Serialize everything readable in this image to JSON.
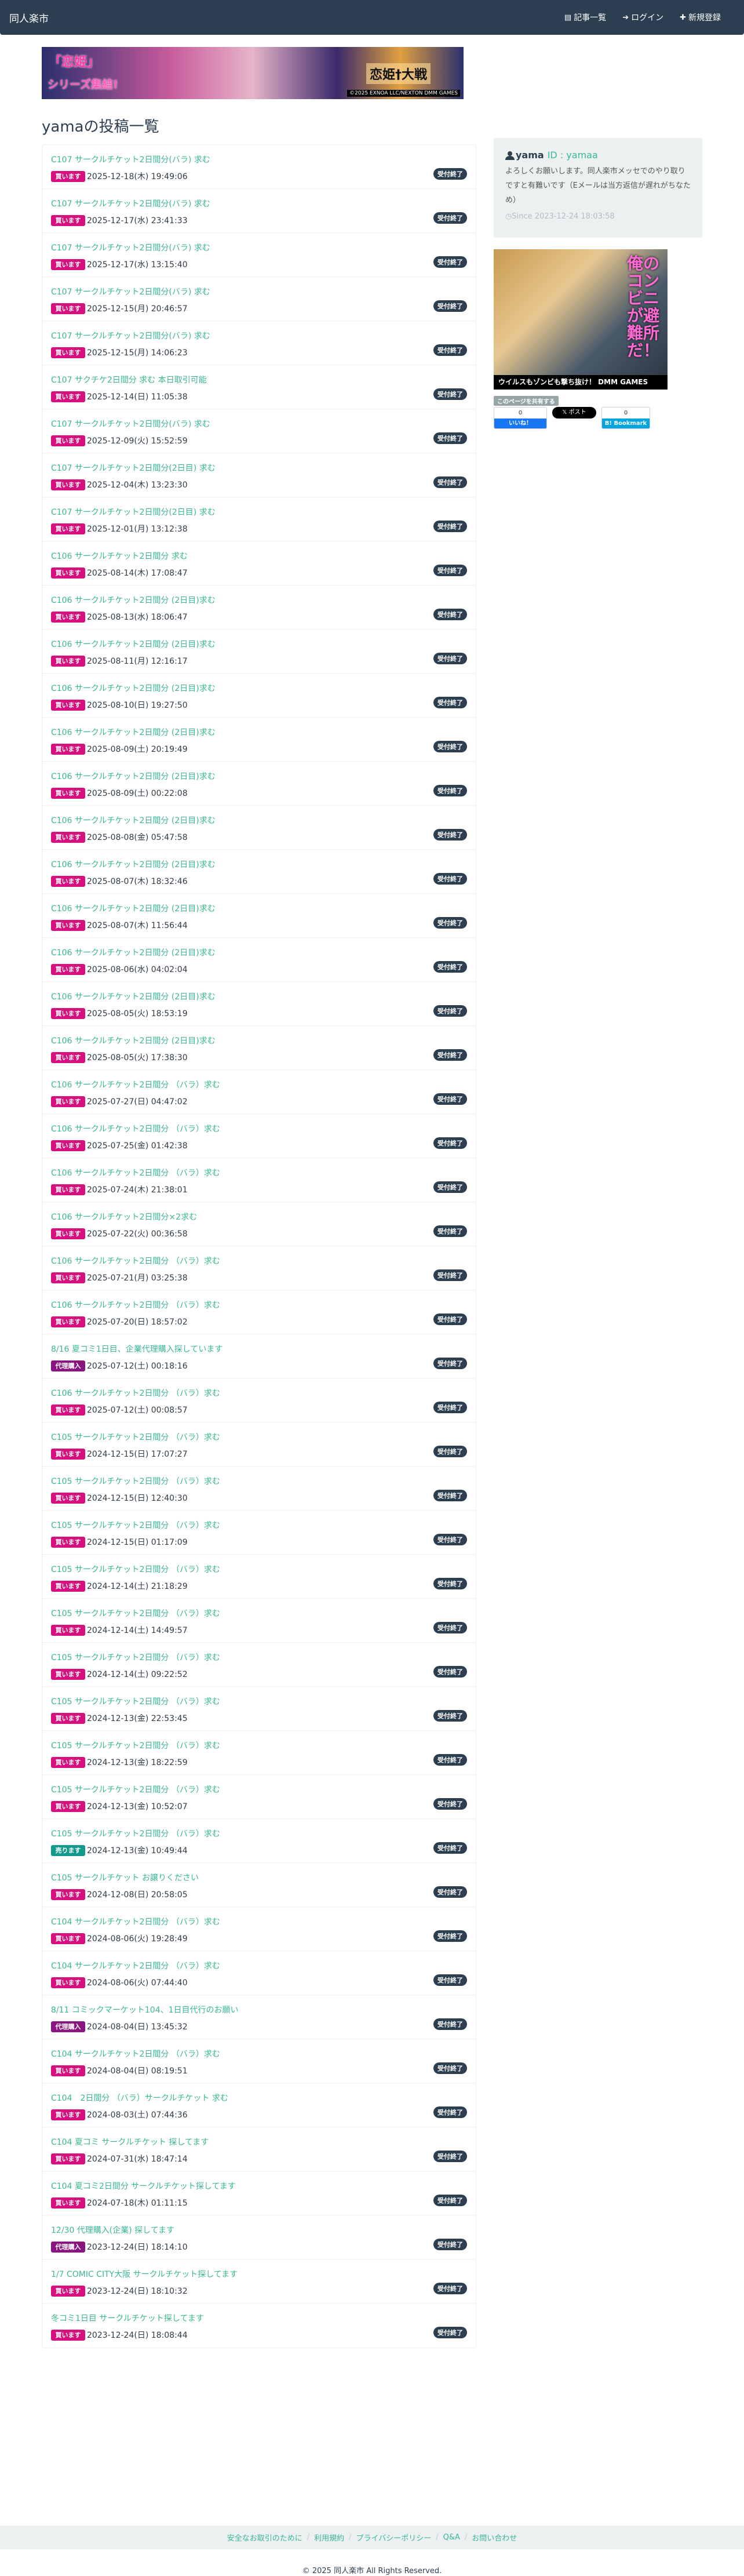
{
  "navbar": {
    "brand": "同人楽市",
    "items": [
      {
        "icon": "list-icon",
        "glyph": "▤",
        "label": "記事一覧"
      },
      {
        "icon": "login-icon",
        "glyph": "➔",
        "label": "ログイン"
      },
      {
        "icon": "plus-icon",
        "glyph": "✚",
        "label": "新規登録"
      }
    ]
  },
  "top_banner": {
    "line1": "「恋姫」",
    "line2": "シリーズ集結!",
    "line3": "恋姫†大戦",
    "credit": "©2025 EXNOA LLC/NEXTON DMM GAMES"
  },
  "page_title": "yamaの投稿一覧",
  "colors": {
    "navbar": "#2c3e50",
    "link": "#3ab795",
    "buy": "#d80f7e",
    "sell": "#139a8e",
    "proxy": "#8a157e",
    "status": "#2c3e50"
  },
  "posts": [
    {
      "title": "C107 サークルチケット2日間分(バラ) 求む",
      "type": "buy",
      "label": "買います",
      "date": "2025-12-18(木) 19:49:06",
      "status": "受付終了"
    },
    {
      "title": "C107 サークルチケット2日間分(バラ) 求む",
      "type": "buy",
      "label": "買います",
      "date": "2025-12-17(水) 23:41:33",
      "status": "受付終了"
    },
    {
      "title": "C107 サークルチケット2日間分(バラ) 求む",
      "type": "buy",
      "label": "買います",
      "date": "2025-12-17(水) 13:15:40",
      "status": "受付終了"
    },
    {
      "title": "C107 サークルチケット2日間分(バラ) 求む",
      "type": "buy",
      "label": "買います",
      "date": "2025-12-15(月) 20:46:57",
      "status": "受付終了"
    },
    {
      "title": "C107 サークルチケット2日間分(バラ) 求む",
      "type": "buy",
      "label": "買います",
      "date": "2025-12-15(月) 14:06:23",
      "status": "受付終了"
    },
    {
      "title": "C107 サクチケ2日間分 求む 本日取引可能",
      "type": "buy",
      "label": "買います",
      "date": "2025-12-14(日) 11:05:38",
      "status": "受付終了"
    },
    {
      "title": "C107 サークルチケット2日間分(バラ) 求む",
      "type": "buy",
      "label": "買います",
      "date": "2025-12-09(火) 15:52:59",
      "status": "受付終了"
    },
    {
      "title": "C107 サークルチケット2日間分(2日目) 求む",
      "type": "buy",
      "label": "買います",
      "date": "2025-12-04(木) 13:23:30",
      "status": "受付終了"
    },
    {
      "title": "C107 サークルチケット2日間分(2日目) 求む",
      "type": "buy",
      "label": "買います",
      "date": "2025-12-01(月) 13:12:38",
      "status": "受付終了"
    },
    {
      "title": "C106 サークルチケット2日間分 求む",
      "type": "buy",
      "label": "買います",
      "date": "2025-08-14(木) 17:08:47",
      "status": "受付終了"
    },
    {
      "title": "C106 サークルチケット2日間分 (2日目)求む",
      "type": "buy",
      "label": "買います",
      "date": "2025-08-13(水) 18:06:47",
      "status": "受付終了"
    },
    {
      "title": "C106 サークルチケット2日間分 (2日目)求む",
      "type": "buy",
      "label": "買います",
      "date": "2025-08-11(月) 12:16:17",
      "status": "受付終了"
    },
    {
      "title": "C106 サークルチケット2日間分 (2日目)求む",
      "type": "buy",
      "label": "買います",
      "date": "2025-08-10(日) 19:27:50",
      "status": "受付終了"
    },
    {
      "title": "C106 サークルチケット2日間分 (2日目)求む",
      "type": "buy",
      "label": "買います",
      "date": "2025-08-09(土) 20:19:49",
      "status": "受付終了"
    },
    {
      "title": "C106 サークルチケット2日間分 (2日目)求む",
      "type": "buy",
      "label": "買います",
      "date": "2025-08-09(土) 00:22:08",
      "status": "受付終了"
    },
    {
      "title": "C106 サークルチケット2日間分 (2日目)求む",
      "type": "buy",
      "label": "買います",
      "date": "2025-08-08(金) 05:47:58",
      "status": "受付終了"
    },
    {
      "title": "C106 サークルチケット2日間分 (2日目)求む",
      "type": "buy",
      "label": "買います",
      "date": "2025-08-07(木) 18:32:46",
      "status": "受付終了"
    },
    {
      "title": "C106 サークルチケット2日間分 (2日目)求む",
      "type": "buy",
      "label": "買います",
      "date": "2025-08-07(木) 11:56:44",
      "status": "受付終了"
    },
    {
      "title": "C106 サークルチケット2日間分 (2日目)求む",
      "type": "buy",
      "label": "買います",
      "date": "2025-08-06(水) 04:02:04",
      "status": "受付終了"
    },
    {
      "title": "C106 サークルチケット2日間分 (2日目)求む",
      "type": "buy",
      "label": "買います",
      "date": "2025-08-05(火) 18:53:19",
      "status": "受付終了"
    },
    {
      "title": "C106 サークルチケット2日間分 (2日目)求む",
      "type": "buy",
      "label": "買います",
      "date": "2025-08-05(火) 17:38:30",
      "status": "受付終了"
    },
    {
      "title": "C106 サークルチケット2日間分 （バラ）求む",
      "type": "buy",
      "label": "買います",
      "date": "2025-07-27(日) 04:47:02",
      "status": "受付終了"
    },
    {
      "title": "C106 サークルチケット2日間分 （バラ）求む",
      "type": "buy",
      "label": "買います",
      "date": "2025-07-25(金) 01:42:38",
      "status": "受付終了"
    },
    {
      "title": "C106 サークルチケット2日間分 （バラ）求む",
      "type": "buy",
      "label": "買います",
      "date": "2025-07-24(木) 21:38:01",
      "status": "受付終了"
    },
    {
      "title": "C106 サークルチケット2日間分×2求む",
      "type": "buy",
      "label": "買います",
      "date": "2025-07-22(火) 00:36:58",
      "status": "受付終了"
    },
    {
      "title": "C106 サークルチケット2日間分 （バラ）求む",
      "type": "buy",
      "label": "買います",
      "date": "2025-07-21(月) 03:25:38",
      "status": "受付終了"
    },
    {
      "title": "C106 サークルチケット2日間分 （バラ）求む",
      "type": "buy",
      "label": "買います",
      "date": "2025-07-20(日) 18:57:02",
      "status": "受付終了"
    },
    {
      "title": "8/16 夏コミ1日目、企業代理購入探しています",
      "type": "proxy",
      "label": "代理購入",
      "date": "2025-07-12(土) 00:18:16",
      "status": "受付終了"
    },
    {
      "title": "C106 サークルチケット2日間分 （バラ）求む",
      "type": "buy",
      "label": "買います",
      "date": "2025-07-12(土) 00:08:57",
      "status": "受付終了"
    },
    {
      "title": "C105 サークルチケット2日間分 （バラ）求む",
      "type": "buy",
      "label": "買います",
      "date": "2024-12-15(日) 17:07:27",
      "status": "受付終了"
    },
    {
      "title": "C105 サークルチケット2日間分 （バラ）求む",
      "type": "buy",
      "label": "買います",
      "date": "2024-12-15(日) 12:40:30",
      "status": "受付終了"
    },
    {
      "title": "C105 サークルチケット2日間分 （バラ）求む",
      "type": "buy",
      "label": "買います",
      "date": "2024-12-15(日) 01:17:09",
      "status": "受付終了"
    },
    {
      "title": "C105 サークルチケット2日間分 （バラ）求む",
      "type": "buy",
      "label": "買います",
      "date": "2024-12-14(土) 21:18:29",
      "status": "受付終了"
    },
    {
      "title": "C105 サークルチケット2日間分 （バラ）求む",
      "type": "buy",
      "label": "買います",
      "date": "2024-12-14(土) 14:49:57",
      "status": "受付終了"
    },
    {
      "title": "C105 サークルチケット2日間分 （バラ）求む",
      "type": "buy",
      "label": "買います",
      "date": "2024-12-14(土) 09:22:52",
      "status": "受付終了"
    },
    {
      "title": "C105 サークルチケット2日間分 （バラ）求む",
      "type": "buy",
      "label": "買います",
      "date": "2024-12-13(金) 22:53:45",
      "status": "受付終了"
    },
    {
      "title": "C105 サークルチケット2日間分 （バラ）求む",
      "type": "buy",
      "label": "買います",
      "date": "2024-12-13(金) 18:22:59",
      "status": "受付終了"
    },
    {
      "title": "C105 サークルチケット2日間分 （バラ）求む",
      "type": "buy",
      "label": "買います",
      "date": "2024-12-13(金) 10:52:07",
      "status": "受付終了"
    },
    {
      "title": "C105 サークルチケット2日間分 （バラ）求む",
      "type": "sell",
      "label": "売ります",
      "date": "2024-12-13(金) 10:49:44",
      "status": "受付終了"
    },
    {
      "title": "C105 サークルチケット お譲りください",
      "type": "buy",
      "label": "買います",
      "date": "2024-12-08(日) 20:58:05",
      "status": "受付終了"
    },
    {
      "title": "C104 サークルチケット2日間分 （バラ）求む",
      "type": "buy",
      "label": "買います",
      "date": "2024-08-06(火) 19:28:49",
      "status": "受付終了"
    },
    {
      "title": "C104 サークルチケット2日間分 （バラ）求む",
      "type": "buy",
      "label": "買います",
      "date": "2024-08-06(火) 07:44:40",
      "status": "受付終了"
    },
    {
      "title": "8/11 コミックマーケット104、1日目代行のお願い",
      "type": "proxy",
      "label": "代理購入",
      "date": "2024-08-04(日) 13:45:32",
      "status": "受付終了"
    },
    {
      "title": "C104 サークルチケット2日間分 （バラ）求む",
      "type": "buy",
      "label": "買います",
      "date": "2024-08-04(日) 08:19:51",
      "status": "受付終了"
    },
    {
      "title": "C104　2日間分 （バラ）サークルチケット 求む",
      "type": "buy",
      "label": "買います",
      "date": "2024-08-03(土) 07:44:36",
      "status": "受付終了"
    },
    {
      "title": "C104 夏コミ サークルチケット 探してます",
      "type": "buy",
      "label": "買います",
      "date": "2024-07-31(水) 18:47:14",
      "status": "受付終了"
    },
    {
      "title": "C104 夏コミ2日間分 サークルチケット探してます",
      "type": "buy",
      "label": "買います",
      "date": "2024-07-18(木) 01:11:15",
      "status": "受付終了"
    },
    {
      "title": "12/30 代理購入(企業) 探してます",
      "type": "proxy",
      "label": "代理購入",
      "date": "2023-12-24(日) 18:14:10",
      "status": "受付終了"
    },
    {
      "title": "1/7 COMIC CITY大阪 サークルチケット探してます",
      "type": "buy",
      "label": "買います",
      "date": "2023-12-24(日) 18:10:32",
      "status": "受付終了"
    },
    {
      "title": "冬コミ1日目 サークルチケット探してます",
      "type": "buy",
      "label": "買います",
      "date": "2023-12-24(日) 18:08:44",
      "status": "受付終了"
    }
  ],
  "profile": {
    "name": "yama",
    "id_label": "ID : yamaa",
    "description": "よろしくお願いします。同人楽市メッセでのやり取りですと有難いです（Eメールは当方返信が遅れがちなため）",
    "since": "Since 2023-12-24 18:03:58"
  },
  "side_ad": {
    "headline": "俺のコンビニが避難所だ！",
    "tagline": "ウイルスもゾンビも撃ち抜け！ DMM GAMES"
  },
  "share": {
    "label": "このページを共有する",
    "facebook_count": "0",
    "facebook_label": "いいね！",
    "x_label": "𝕏 ポスト",
    "hatena_count": "0",
    "hatena_label": "B! Bookmark"
  },
  "footer": {
    "links": [
      "安全なお取引のために",
      "利用規約",
      "プライバシーポリシー",
      "Q&A",
      "お問い合わせ"
    ],
    "copyright": "© 2025 同人楽市 All Rights Reserved."
  }
}
